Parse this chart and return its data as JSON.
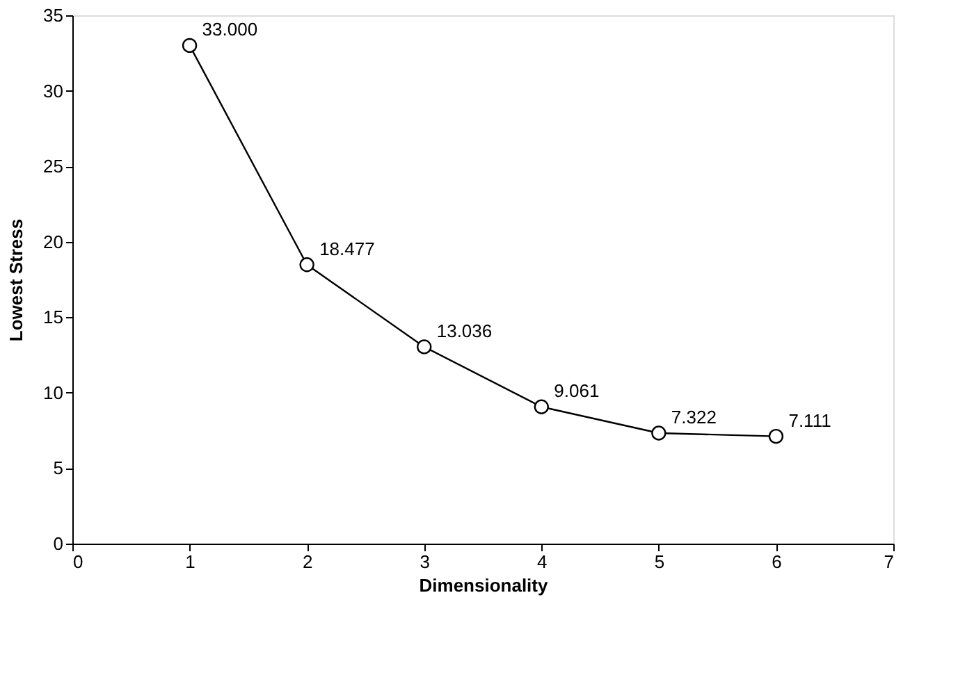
{
  "chart_data": {
    "type": "line",
    "xlabel": "Dimensionality",
    "ylabel": "Lowest Stress",
    "x": [
      1,
      2,
      3,
      4,
      5,
      6
    ],
    "series": [
      {
        "color": "#000000",
        "values": [
          33.0,
          18.477,
          13.036,
          9.061,
          7.322,
          7.111
        ],
        "value_labels": [
          "33.000",
          "18.477",
          "13.036",
          "9.061",
          "7.322",
          "7.111"
        ]
      }
    ],
    "xlim": [
      0,
      7
    ],
    "xticks": [
      0,
      1,
      2,
      3,
      4,
      5,
      6,
      7
    ],
    "ylim": [
      0,
      35
    ],
    "yticks": [
      0,
      5,
      10,
      15,
      20,
      25,
      30,
      35
    ],
    "grid": false,
    "marker": "circle",
    "line_style": "solid"
  }
}
